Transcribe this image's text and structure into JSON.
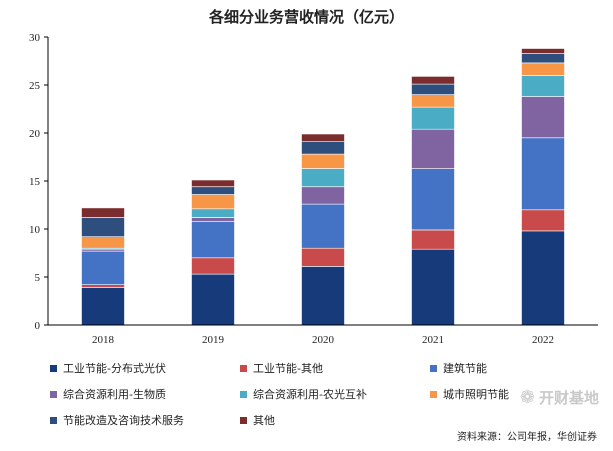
{
  "chart_data": {
    "type": "bar",
    "stacked": true,
    "title": "各细分业务营收情况（亿元）",
    "categories": [
      "2018",
      "2019",
      "2020",
      "2021",
      "2022"
    ],
    "ylim": [
      0,
      30
    ],
    "yticks": [
      0,
      5,
      10,
      15,
      20,
      25,
      30
    ],
    "grid": false,
    "legend_position": "bottom",
    "series": [
      {
        "name": "工业节能-分布式光伏",
        "color": "#163a7a",
        "values": [
          3.9,
          5.3,
          6.1,
          7.9,
          9.8
        ]
      },
      {
        "name": "工业节能-其他",
        "color": "#c94a4a",
        "values": [
          0.3,
          1.7,
          1.9,
          2.0,
          2.2
        ]
      },
      {
        "name": "建筑节能",
        "color": "#4472c4",
        "values": [
          3.5,
          3.8,
          4.6,
          6.4,
          7.5
        ]
      },
      {
        "name": "综合资源利用-生物质",
        "color": "#8064a2",
        "values": [
          0.2,
          0.4,
          1.8,
          4.1,
          4.3
        ]
      },
      {
        "name": "综合资源利用-农光互补",
        "color": "#4bacc6",
        "values": [
          0.1,
          0.9,
          1.9,
          2.3,
          2.2
        ]
      },
      {
        "name": "城市照明节能",
        "color": "#f79646",
        "values": [
          1.2,
          1.5,
          1.5,
          1.3,
          1.3
        ]
      },
      {
        "name": "节能改造及咨询技术服务",
        "color": "#2e4e7e",
        "values": [
          2.0,
          0.8,
          1.3,
          1.1,
          1.0
        ]
      },
      {
        "name": "其他",
        "color": "#7b2c2c",
        "values": [
          1.0,
          0.7,
          0.8,
          0.8,
          0.5
        ]
      }
    ]
  },
  "watermark": {
    "icon": "bubble-icon",
    "text": "开财基地"
  },
  "source": "资料来源：公司年报，华创证券"
}
